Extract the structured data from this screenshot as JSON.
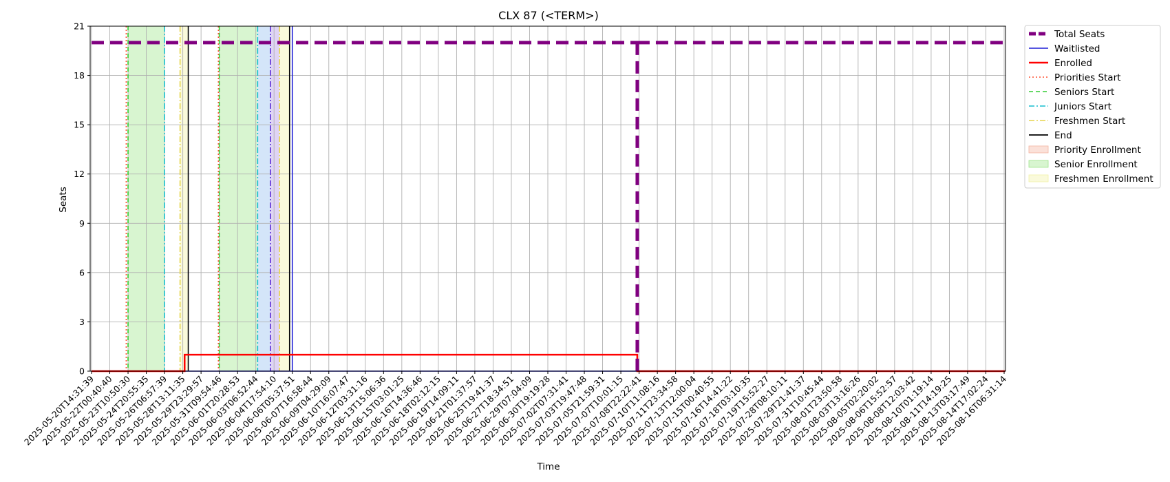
{
  "chart_data": {
    "type": "line",
    "title": "CLX 87 (<TERM>)",
    "xlabel": "Time",
    "ylabel": "Seats",
    "ylim": [
      0,
      21
    ],
    "yticks": [
      0,
      3,
      6,
      9,
      12,
      15,
      18,
      21
    ],
    "grid": true,
    "legend_position": "outside-right-top",
    "x_tick_labels": [
      "2025-05-20T14:31:39",
      "2025-05-22T00:40:40",
      "2025-05-23T10:50:30",
      "2025-05-24T20:55:35",
      "2025-05-26T06:57:39",
      "2025-05-28T13:11:35",
      "2025-05-29T23:29:57",
      "2025-05-31T09:54:46",
      "2025-06-01T20:28:53",
      "2025-06-03T06:52:44",
      "2025-06-04T17:54:10",
      "2025-06-06T05:37:51",
      "2025-06-07T16:58:44",
      "2025-06-09T04:29:09",
      "2025-06-10T16:07:47",
      "2025-06-12T03:31:16",
      "2025-06-13T15:06:36",
      "2025-06-15T03:01:25",
      "2025-06-16T14:36:46",
      "2025-06-18T02:12:15",
      "2025-06-19T14:09:11",
      "2025-06-21T01:37:57",
      "2025-06-25T19:41:37",
      "2025-06-27T18:34:51",
      "2025-06-29T07:04:09",
      "2025-06-30T19:19:28",
      "2025-07-02T07:31:41",
      "2025-07-03T19:47:48",
      "2025-07-05T21:59:31",
      "2025-07-07T10:01:15",
      "2025-07-08T22:22:41",
      "2025-07-10T11:08:16",
      "2025-07-11T23:34:58",
      "2025-07-13T12:00:04",
      "2025-07-15T00:40:55",
      "2025-07-16T14:41:22",
      "2025-07-18T03:10:35",
      "2025-07-19T15:52:27",
      "2025-07-28T08:10:11",
      "2025-07-29T21:41:37",
      "2025-07-31T10:45:44",
      "2025-08-01T23:50:58",
      "2025-08-03T13:16:26",
      "2025-08-05T02:20:02",
      "2025-08-06T15:52:57",
      "2025-08-08T12:03:42",
      "2025-08-10T01:19:14",
      "2025-08-11T14:19:25",
      "2025-08-13T03:17:49",
      "2025-08-14T17:02:24",
      "2025-08-16T06:31:14"
    ],
    "x_range_ticks": [
      -0.05,
      50.05
    ],
    "series": [
      {
        "name": "Total Seats",
        "style": "dashed",
        "color": "#800080",
        "x": [
          0,
          29.9,
          29.9,
          50.05
        ],
        "y": [
          20,
          20,
          0,
          20
        ]
      },
      {
        "name": "Waitlisted",
        "style": "solid",
        "color": "#1f1fd6",
        "x": [
          0,
          29.9
        ],
        "y": [
          0,
          0
        ]
      },
      {
        "name": "Enrolled",
        "style": "solid",
        "color": "#ff0000",
        "x": [
          0,
          5.1,
          5.1,
          29.9,
          29.9,
          50.05
        ],
        "y": [
          0,
          0,
          1,
          1,
          0,
          0
        ]
      }
    ],
    "vertical_markers": [
      {
        "name": "Priorities Start",
        "style": "dotted",
        "color": "#ff5030",
        "x": [
          1.9,
          6.95
        ]
      },
      {
        "name": "Seniors Start",
        "style": "dashed",
        "color": "#33cc33",
        "x": [
          2.0,
          7.0
        ]
      },
      {
        "name": "Juniors Start",
        "style": "dashdot",
        "color": "#17becf",
        "x": [
          4.0,
          9.1
        ]
      },
      {
        "name": "Freshmen Start",
        "style": "dashdot",
        "color": "#e6d44a",
        "x": [
          4.85,
          10.3
        ]
      },
      {
        "name": "End",
        "style": "solid",
        "color": "#000000",
        "x": [
          5.3,
          10.85
        ]
      }
    ],
    "extra_markers": [
      {
        "style": "dashdot",
        "color": "#5a2bd6",
        "x": [
          9.8
        ]
      },
      {
        "style": "solid",
        "color": "#1f1fd6",
        "x": [
          11.0
        ]
      }
    ],
    "shaded_regions": [
      {
        "name": "Priority Enrollment",
        "color": "#f4b4a0",
        "opacity": 0.4,
        "ranges": []
      },
      {
        "name": "Senior Enrollment",
        "color": "#9ee58a",
        "opacity": 0.4,
        "ranges": [
          [
            2.0,
            4.0
          ],
          [
            7.0,
            9.1
          ]
        ]
      },
      {
        "name": "Freshmen Enrollment",
        "color": "#f2f2a6",
        "opacity": 0.4,
        "ranges": [
          [
            4.85,
            5.3
          ],
          [
            10.3,
            10.85
          ]
        ]
      },
      {
        "color": "#b8d4f5",
        "opacity": 0.6,
        "ranges": [
          [
            9.1,
            9.8
          ]
        ]
      },
      {
        "color": "#c9b7ee",
        "opacity": 0.6,
        "ranges": [
          [
            9.8,
            10.3
          ]
        ]
      }
    ],
    "legend": [
      {
        "label": "Total Seats",
        "kind": "line",
        "style": "dashed",
        "color": "#800080",
        "width": 5
      },
      {
        "label": "Waitlisted",
        "kind": "line",
        "style": "solid",
        "color": "#1f1fd6",
        "width": 1.5
      },
      {
        "label": "Enrolled",
        "kind": "line",
        "style": "solid",
        "color": "#ff0000",
        "width": 2.5
      },
      {
        "label": "Priorities Start",
        "kind": "line",
        "style": "dotted",
        "color": "#ff5030",
        "width": 1.5
      },
      {
        "label": "Seniors Start",
        "kind": "line",
        "style": "dashed",
        "color": "#33cc33",
        "width": 1.5
      },
      {
        "label": "Juniors Start",
        "kind": "line",
        "style": "dashdot",
        "color": "#17becf",
        "width": 1.5
      },
      {
        "label": "Freshmen Start",
        "kind": "line",
        "style": "dashdot",
        "color": "#e6d44a",
        "width": 1.5
      },
      {
        "label": "End",
        "kind": "line",
        "style": "solid",
        "color": "#000000",
        "width": 1.8
      },
      {
        "label": "Priority Enrollment",
        "kind": "patch",
        "color": "#f4b4a0",
        "opacity": 0.4
      },
      {
        "label": "Senior Enrollment",
        "kind": "patch",
        "color": "#9ee58a",
        "opacity": 0.4
      },
      {
        "label": "Freshmen Enrollment",
        "kind": "patch",
        "color": "#f2f2a6",
        "opacity": 0.4
      }
    ]
  }
}
